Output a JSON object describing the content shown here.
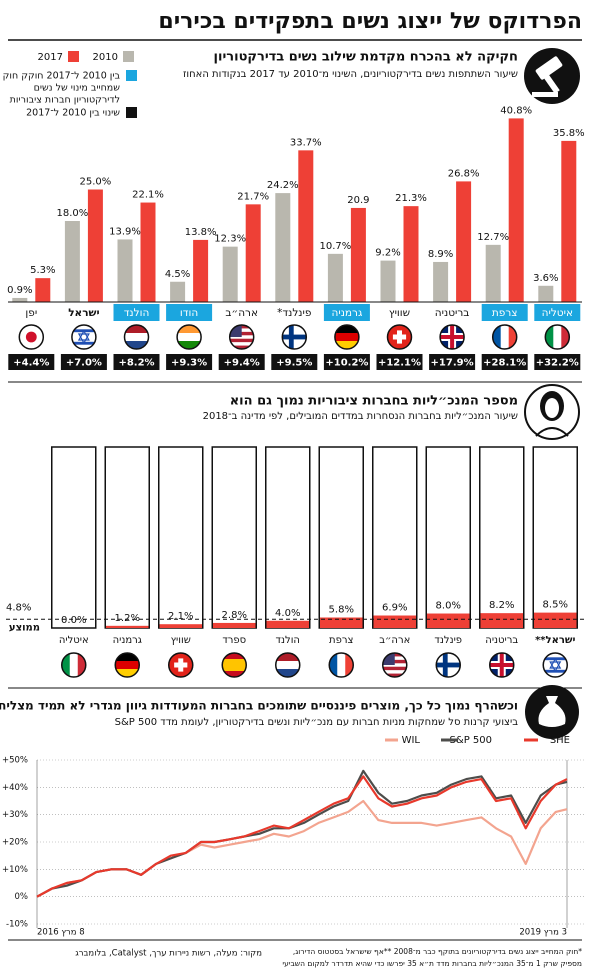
{
  "title": "הפרדוקס של ייצוג נשים בתפקידים בכירים",
  "chart_data": [
    {
      "type": "bar",
      "title": "חקיקה לא בהכרח מקדמת שילוב נשים בדירקטוריון",
      "subtitle": "שיעור השתתפות נשים בדירקטוריונים, השינוי מ־2010 עד 2017 בנקודות האחוז",
      "categories": [
        "יפן",
        "ישראל",
        "הולנד",
        "הודו",
        "ארה״ב",
        "פינלנד*",
        "גרמניה",
        "שוויץ",
        "בריטניה",
        "צרפת",
        "איטליה"
      ],
      "highlight_index": 1,
      "series": [
        {
          "name": "2010",
          "color": "#b9b7ae",
          "values": [
            0.9,
            18.0,
            13.9,
            4.5,
            12.3,
            24.2,
            10.7,
            9.2,
            8.9,
            12.7,
            3.6
          ],
          "value_labels": [
            "0.9%",
            "18.0%",
            "13.9%",
            "4.5%",
            "12.3%",
            "24.2%",
            "10.7%",
            "9.2%",
            "8.9%",
            "12.7%",
            "3.6%"
          ]
        },
        {
          "name": "2017",
          "color": "#ee4036",
          "values": [
            5.3,
            25.0,
            22.1,
            13.8,
            21.7,
            33.7,
            20.9,
            21.3,
            26.8,
            40.8,
            35.8
          ],
          "value_labels": [
            "5.3%",
            "25.0%",
            "22.1%",
            "13.8%",
            "21.7%",
            "33.7%",
            "20.9",
            "21.3%",
            "26.8%",
            "40.8%",
            "35.8%"
          ]
        }
      ],
      "law": {
        "name": [
          "בין 2010 ל־2017 חוקק חוק",
          "שמחייב מינוי של נשים",
          "לדירקטוריון חברות ציבוריות"
        ],
        "color": "#1ba6df",
        "flags": [
          false,
          false,
          true,
          true,
          false,
          false,
          true,
          false,
          false,
          true,
          true
        ]
      },
      "change": {
        "name": "שינוי בין 2010 ל־2017",
        "color": "#111111",
        "values": [
          4.4,
          7.0,
          8.2,
          9.3,
          9.4,
          9.5,
          10.2,
          12.1,
          17.9,
          28.1,
          32.2
        ],
        "value_labels": [
          "+4.4%",
          "+7.0%",
          "+8.2%",
          "+9.3%",
          "+9.4%",
          "+9.5%",
          "+10.2%",
          "+12.1%",
          "+17.9%",
          "+28.1%",
          "+32.2%"
        ]
      }
    },
    {
      "type": "bar",
      "title": "מספר המנכ״ליות בחברות ציבוריות נמוך גם הוא",
      "subtitle": "שיעור המנכ״ליות בחברות הנסחרות במדדים המובילים, לפי מדינה ב־2018",
      "categories": [
        "איטליה",
        "גרמניה",
        "שוויץ",
        "ספרד",
        "הולנד",
        "צרפת",
        "ארה״ב",
        "פינלנד",
        "בריטניה",
        "ישראל**"
      ],
      "highlight_index": 9,
      "values": [
        0.0,
        1.2,
        2.1,
        2.8,
        4.0,
        5.8,
        6.9,
        8.0,
        8.2,
        8.5
      ],
      "value_labels": [
        "0.0%",
        "1.2%",
        "2.1%",
        "2.8%",
        "4.0%",
        "5.8%",
        "6.9%",
        "8.0%",
        "8.2%",
        "8.5%"
      ],
      "color": "#ee4036",
      "average": {
        "label": "ממוצע",
        "value": 4.8,
        "value_label": "4.8%"
      }
    },
    {
      "type": "line",
      "title": "וכשהרף נמוך כל כך, מוצרים פיננסיים שתומכים בחברות המעודדות גיוון מגדרי לא תמיד מצליחים",
      "subtitle": "ביצועי קרנות סל שמחקות מניות חברות עם מנכ״ליות ונשים בדירקטוריון, לעומת מדד S&P 500",
      "x": [
        "2016-03-08",
        "2016-04-08",
        "2016-05-08",
        "2016-06-08",
        "2016-07-08",
        "2016-08-08",
        "2016-09-08",
        "2016-10-08",
        "2016-11-08",
        "2016-12-08",
        "2017-01-08",
        "2017-02-08",
        "2017-03-08",
        "2017-04-08",
        "2017-05-08",
        "2017-06-08",
        "2017-07-08",
        "2017-08-08",
        "2017-09-08",
        "2017-10-08",
        "2017-11-08",
        "2017-12-08",
        "2018-01-08",
        "2018-02-08",
        "2018-03-08",
        "2018-04-08",
        "2018-05-08",
        "2018-06-08",
        "2018-07-08",
        "2018-08-08",
        "2018-09-08",
        "2018-10-08",
        "2018-11-08",
        "2018-12-08",
        "2019-01-08",
        "2019-02-08",
        "2019-03-03"
      ],
      "series": [
        {
          "name": "WIL",
          "color": "#f3a48f",
          "values": [
            0,
            3,
            5,
            6,
            9,
            10,
            10,
            8,
            12,
            14,
            16,
            19,
            18,
            19,
            20,
            21,
            23,
            22,
            24,
            27,
            29,
            31,
            35,
            28,
            27,
            27,
            27,
            26,
            27,
            28,
            29,
            25,
            22,
            12,
            25,
            31,
            32
          ]
        },
        {
          "name": "S&P 500",
          "color": "#4d4d4b",
          "values": [
            0,
            3,
            4,
            6,
            9,
            10,
            10,
            8,
            12,
            14,
            16,
            20,
            20,
            21,
            22,
            23,
            25,
            25,
            27,
            30,
            33,
            35,
            46,
            38,
            34,
            35,
            37,
            38,
            41,
            43,
            44,
            36,
            37,
            27,
            37,
            41,
            42
          ]
        },
        {
          "name": "SHE",
          "color": "#e8392c",
          "values": [
            0,
            3,
            5,
            6,
            9,
            10,
            10,
            8,
            12,
            15,
            16,
            20,
            20,
            21,
            22,
            24,
            26,
            25,
            28,
            31,
            34,
            36,
            44,
            36,
            33,
            34,
            36,
            37,
            40,
            42,
            43,
            35,
            36,
            25,
            35,
            41,
            43
          ]
        }
      ],
      "xlim": [
        "2016-03-08",
        "2019-03-03"
      ],
      "xticks": [
        {
          "value": "2016-03-08",
          "label": "8 מרץ 2016"
        },
        {
          "value": "2019-03-03",
          "label": "3 מרץ 2019"
        }
      ],
      "ylim": [
        -10,
        50
      ],
      "yticks": [
        {
          "value": -10,
          "label": "-10%"
        },
        {
          "value": 0,
          "label": "0%"
        },
        {
          "value": 10,
          "label": "+10%"
        },
        {
          "value": 20,
          "label": "+20%"
        },
        {
          "value": 30,
          "label": "+30%"
        },
        {
          "value": 40,
          "label": "+40%"
        },
        {
          "value": 50,
          "label": "+50%"
        }
      ],
      "grid": true
    }
  ],
  "footer": {
    "source": "מקור: מעלה, רשות ניירות ערך, Catalyst, בלומברג",
    "notes": [
      "*חוק המחייב ייצוג נשים בדירקטוריונים בתוקף כבר מ־2008 **אף שישראל בסטטוס הדירוג,",
      "מספיק שרק 1 מ־35 המנכ״ליות בחברות מדד ת״א 35 יפרשו כדי שהיא תדרדר למקום השביעי"
    ]
  }
}
